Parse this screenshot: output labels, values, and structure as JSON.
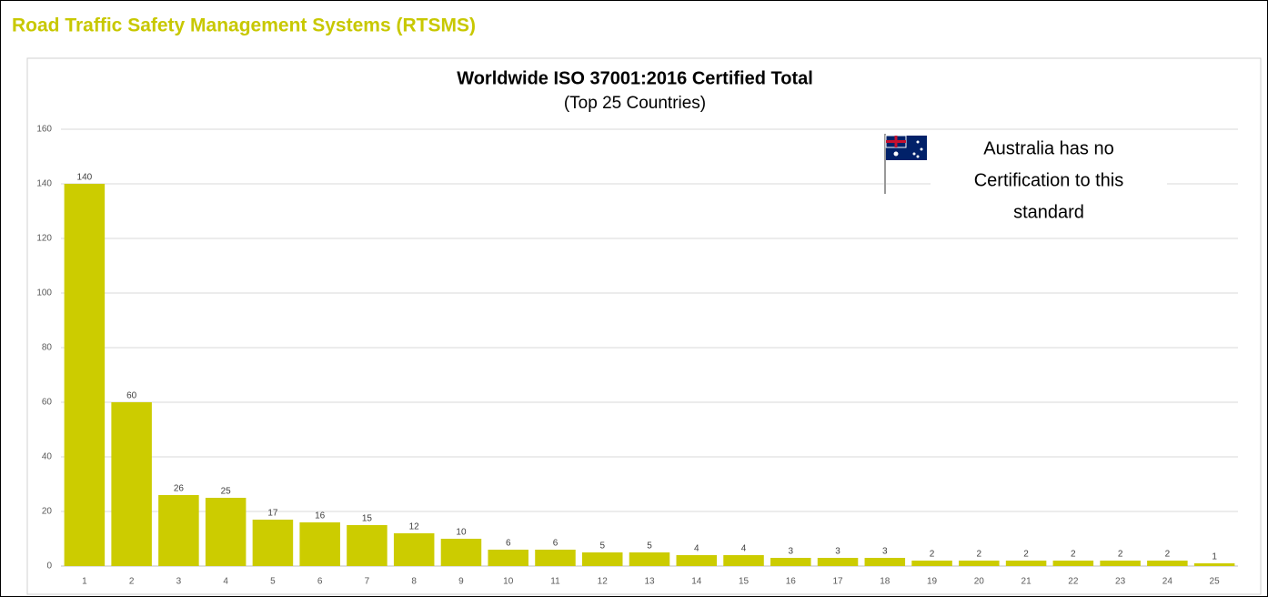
{
  "header": {
    "title": "Road Traffic Safety Management Systems (RTSMS)"
  },
  "chart_data": {
    "type": "bar",
    "title": "Worldwide ISO 37001:2016 Certified Total",
    "subtitle": "(Top 25 Countries)",
    "annotation": [
      "Australia has no",
      "Certification to this",
      "standard"
    ],
    "categories": [
      "1",
      "2",
      "3",
      "4",
      "5",
      "6",
      "7",
      "8",
      "9",
      "10",
      "11",
      "12",
      "13",
      "14",
      "15",
      "16",
      "17",
      "18",
      "19",
      "20",
      "21",
      "22",
      "23",
      "24",
      "25"
    ],
    "values": [
      140,
      60,
      26,
      25,
      17,
      16,
      15,
      12,
      10,
      6,
      6,
      5,
      5,
      4,
      4,
      3,
      3,
      3,
      2,
      2,
      2,
      2,
      2,
      2,
      1
    ],
    "color": "#cccc00",
    "ylim": [
      0,
      160
    ],
    "yticks": [
      0,
      20,
      40,
      60,
      80,
      100,
      120,
      140,
      160
    ],
    "grid": true
  }
}
